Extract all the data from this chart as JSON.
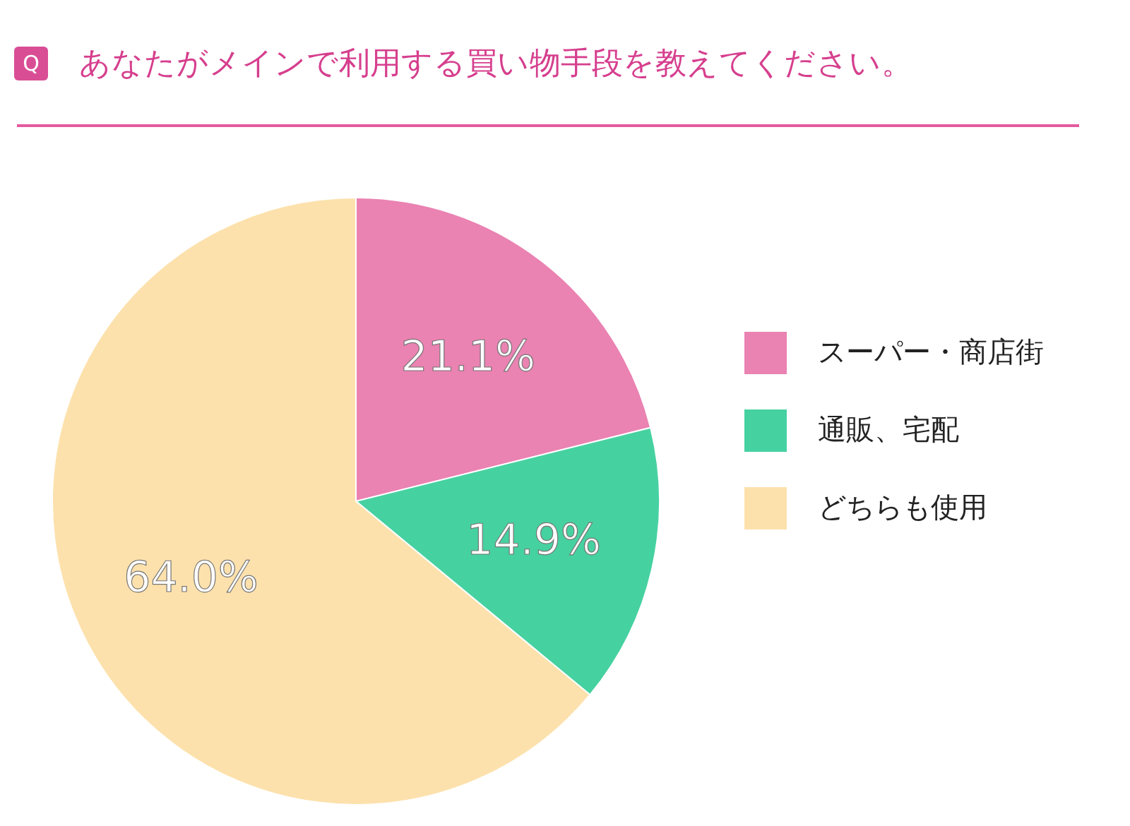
{
  "chart_data": {
    "type": "pie",
    "title": "あなたがメインで利用する買い物手段を教えてください。",
    "annotations": [
      "Q"
    ],
    "categories": [
      "スーパー・商店街",
      "通販、宅配",
      "どちらも使用"
    ],
    "values": [
      21.1,
      14.9,
      64.0
    ],
    "colors": [
      "#ea82b2",
      "#46d1a1",
      "#fde1ac"
    ],
    "value_labels": [
      "21.1%",
      "14.9%",
      "64.0%"
    ],
    "legend": "right"
  }
}
